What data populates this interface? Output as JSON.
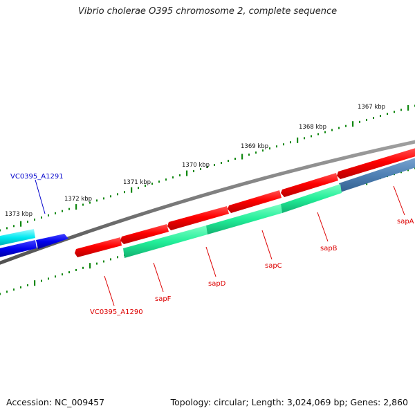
{
  "title": "Vibrio cholerae O395 chromosome 2, complete sequence",
  "footer": {
    "accession": "Accession: NC_009457",
    "summary": "Topology: circular; Length: 3,024,069 bp; Genes: 2,860"
  },
  "ruler": {
    "tick_labels": [
      "1367 kbp",
      "1368 kbp",
      "1369 kbp",
      "1370 kbp",
      "1371 kbp",
      "1372 kbp",
      "1373 kbp"
    ]
  },
  "genes": [
    {
      "label": "sapA",
      "color": "#dd0000"
    },
    {
      "label": "sapB",
      "color": "#dd0000"
    },
    {
      "label": "sapC",
      "color": "#dd0000"
    },
    {
      "label": "sapD",
      "color": "#dd0000"
    },
    {
      "label": "sapF",
      "color": "#dd0000"
    },
    {
      "label": "VC0395_A1290",
      "color": "#dd0000"
    },
    {
      "label": "VC0395_A1291",
      "color": "#0000cc"
    }
  ],
  "colors": {
    "backbone": "#7a7a7a",
    "forward_cds": "#ff1010",
    "reverse_cds": "#0000ee",
    "forward_feature": "#33ee99",
    "reverse_feature": "#00e8f0",
    "steelblue_feature": "#4f81b5",
    "ruler_tick": "#118811"
  }
}
